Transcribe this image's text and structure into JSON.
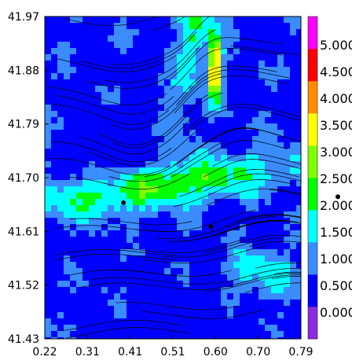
{
  "chart_data": {
    "type": "heatmap",
    "title": "",
    "xlabel": "",
    "ylabel": "",
    "xlim": [
      0.22,
      0.79
    ],
    "ylim": [
      41.43,
      41.97
    ],
    "x_tick_labels": [
      "0.22",
      "0.31",
      "0.41",
      "0.51",
      "0.60",
      "0.70",
      "0.79"
    ],
    "y_tick_labels": [
      "41.43",
      "41.52",
      "41.61",
      "41.70",
      "41.79",
      "41.88",
      "41.97"
    ],
    "colorbar": {
      "labels": [
        "0.000",
        "0.500",
        "1.000",
        "1.500",
        "2.000",
        "2.500",
        "3.000",
        "3.500",
        "4.000",
        "4.500",
        "5.000"
      ],
      "colors": [
        "#8a2be2",
        "#0000ff",
        "#3a8cff",
        "#00ffff",
        "#00ff00",
        "#7fff00",
        "#ffff00",
        "#ff8c00",
        "#ff0000",
        "#ff00ff"
      ]
    },
    "overlay": "streamlines",
    "markers": [
      {
        "x": 0.395,
        "y": 41.658
      },
      {
        "x": 0.59,
        "y": 41.618
      }
    ],
    "outside_marker_y": 41.668
  }
}
